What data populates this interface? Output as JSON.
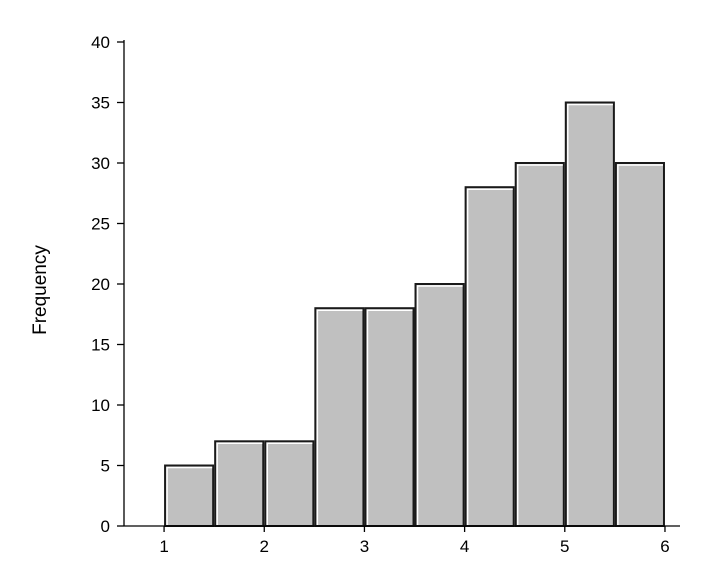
{
  "chart_data": {
    "type": "bar",
    "title": "",
    "xlabel": "",
    "ylabel": "Frequency",
    "ylim": [
      0,
      40
    ],
    "yticks": [
      "0",
      "5",
      "10",
      "15",
      "20",
      "25",
      "30",
      "35",
      "40"
    ],
    "xticks": [
      {
        "value": 1,
        "label": "1"
      },
      {
        "value": 2,
        "label": "2"
      },
      {
        "value": 3,
        "label": "3"
      },
      {
        "value": 4,
        "label": "4"
      },
      {
        "value": 5,
        "label": "5"
      },
      {
        "value": 6,
        "label": "6"
      }
    ],
    "xlim": [
      0.6,
      6.15
    ],
    "grid": false,
    "bins": [
      {
        "start": 1.0,
        "end": 1.5,
        "value": 5
      },
      {
        "start": 1.5,
        "end": 2.0,
        "value": 7
      },
      {
        "start": 2.0,
        "end": 2.5,
        "value": 7
      },
      {
        "start": 2.5,
        "end": 3.0,
        "value": 18
      },
      {
        "start": 3.0,
        "end": 3.5,
        "value": 18
      },
      {
        "start": 3.5,
        "end": 4.0,
        "value": 20
      },
      {
        "start": 4.0,
        "end": 4.5,
        "value": 28
      },
      {
        "start": 4.5,
        "end": 5.0,
        "value": 30
      },
      {
        "start": 5.0,
        "end": 5.5,
        "value": 35
      },
      {
        "start": 5.5,
        "end": 6.0,
        "value": 30
      }
    ],
    "colors": {
      "bar_fill": "#c0c0c0",
      "bar_stroke": "#1a1a1a",
      "bar_highlight": "#ffffff",
      "axis": "#000000"
    }
  }
}
